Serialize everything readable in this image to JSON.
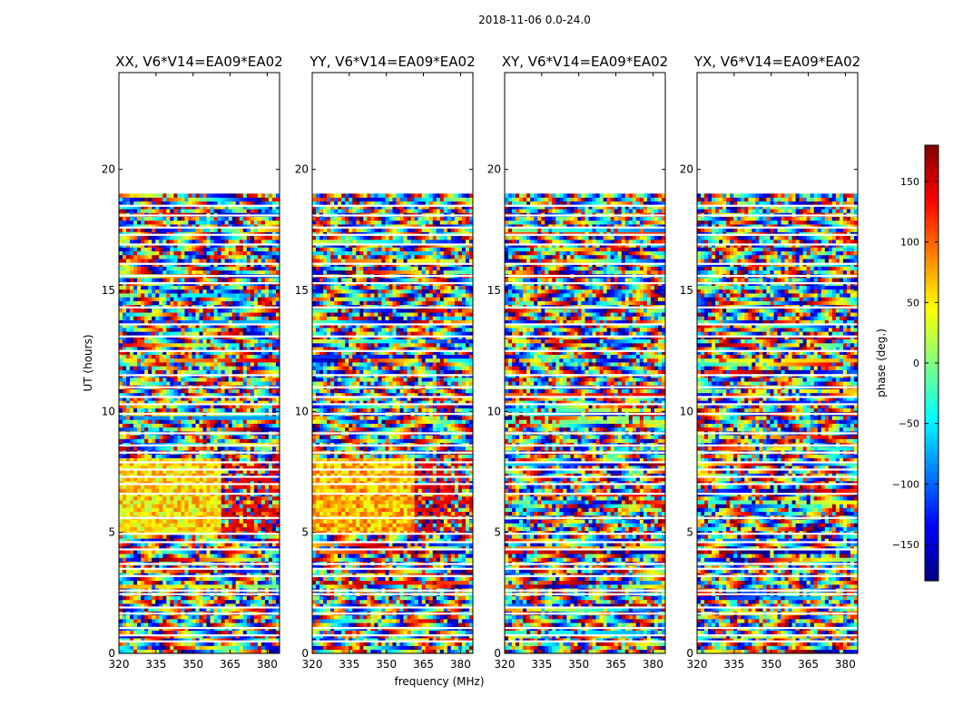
{
  "figure_title": "2018-11-06 0.0-24.0",
  "chart_data": {
    "type": "heatmap",
    "xlabel": "frequency (MHz)",
    "ylabel": "UT (hours)",
    "xlim": [
      320,
      385
    ],
    "ylim": [
      0,
      24
    ],
    "xticks": [
      "320",
      "335",
      "350",
      "365",
      "380"
    ],
    "yticks": [
      "0",
      "5",
      "10",
      "15",
      "20"
    ],
    "colorbar": {
      "label": "phase (deg.)",
      "range": [
        -180,
        180
      ],
      "ticks": [
        "−150",
        "−100",
        "−50",
        "0",
        "50",
        "100",
        "150"
      ],
      "colormap": "jet"
    },
    "panels": [
      {
        "title": "XX, V6*V14=EA09*EA02",
        "data_coverage_ut": [
          0,
          19
        ],
        "coherent_band_ut": [
          4.9,
          8.0
        ],
        "coherent_band_freq": [
          320,
          361
        ],
        "coherent_phase_deg": 55
      },
      {
        "title": "YY, V6*V14=EA09*EA02",
        "data_coverage_ut": [
          0,
          19
        ],
        "coherent_band_ut": [
          4.9,
          8.0
        ],
        "coherent_band_freq": [
          320,
          361
        ],
        "coherent_phase_deg": 70
      },
      {
        "title": "XY, V6*V14=EA09*EA02",
        "data_coverage_ut": [
          0,
          19
        ]
      },
      {
        "title": "YX, V6*V14=EA09*EA02",
        "data_coverage_ut": [
          0,
          19
        ]
      }
    ],
    "flagged_rows_ut": [
      0.5,
      0.75,
      1.05,
      1.65,
      1.9,
      2.45,
      2.6,
      3.2,
      3.5,
      3.7,
      4.3,
      4.6,
      4.95,
      5.6,
      6.6,
      7.0,
      7.3,
      7.6,
      7.9,
      8.3,
      8.6,
      9.1,
      9.9,
      10.3,
      10.6,
      11.0,
      11.5,
      12.5,
      13.1,
      13.6,
      14.3,
      15.3,
      15.6,
      16.1,
      16.9,
      17.3,
      17.6,
      18.1,
      18.5
    ]
  }
}
